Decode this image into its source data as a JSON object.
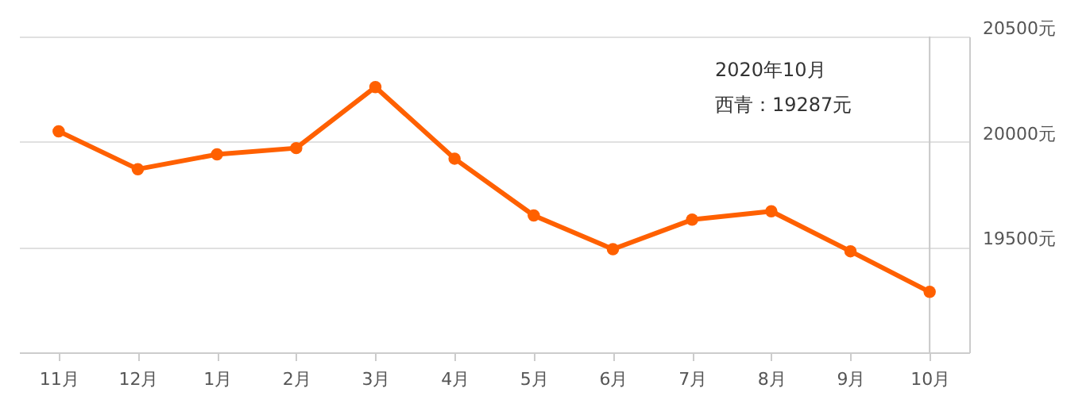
{
  "chart_data": {
    "type": "line",
    "categories": [
      "11月",
      "12月",
      "1月",
      "2月",
      "3月",
      "4月",
      "5月",
      "6月",
      "7月",
      "8月",
      "9月",
      "10月"
    ],
    "series": [
      {
        "color": "#ff6000",
        "values": [
          20050,
          19870,
          19940,
          19970,
          20260,
          19920,
          19650,
          19490,
          19630,
          19670,
          19480,
          19287
        ]
      }
    ],
    "ylim": [
      19000,
      20500
    ],
    "yticks": [
      {
        "value": 19500,
        "label": "19500元"
      },
      {
        "value": 20000,
        "label": "20000元"
      },
      {
        "value": 20500,
        "label": "20500元"
      }
    ],
    "grid": "y",
    "marker": "circle",
    "line_style": "solid",
    "ref_lines": [
      {
        "axis": "x",
        "value": "10月",
        "color": "#c8c8c8"
      }
    ],
    "annotations": [
      "2020年10月",
      "西青：19287元"
    ]
  }
}
